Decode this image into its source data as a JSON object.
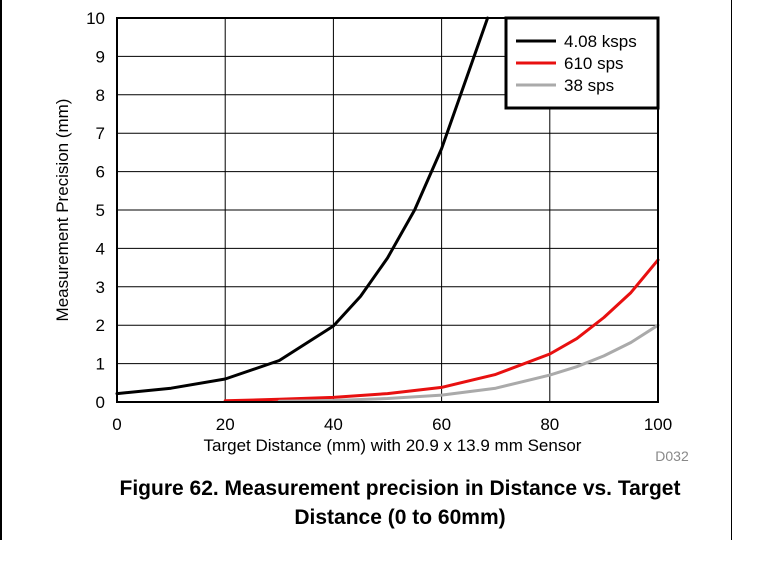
{
  "chart_data": {
    "type": "line",
    "xlabel": "Target Distance (mm) with 20.9 x 13.9 mm Sensor",
    "ylabel": "Measurement Precision (mm)",
    "xlim": [
      0,
      100
    ],
    "ylim": [
      0,
      10
    ],
    "xticks": [
      0,
      20,
      40,
      60,
      80,
      100
    ],
    "yticks": [
      0,
      1,
      2,
      3,
      4,
      5,
      6,
      7,
      8,
      9,
      10
    ],
    "grid": true,
    "legend_position": "top-right",
    "watermark": "D032",
    "series": [
      {
        "name": "4.08 ksps",
        "color": "#000000",
        "x": [
          0,
          10,
          20,
          30,
          40,
          45,
          50,
          55,
          60,
          65,
          68.5
        ],
        "y": [
          0.22,
          0.36,
          0.6,
          1.08,
          1.98,
          2.75,
          3.75,
          5.0,
          6.6,
          8.6,
          10.0
        ]
      },
      {
        "name": "610 sps",
        "color": "#e81010",
        "x": [
          20,
          30,
          40,
          50,
          60,
          70,
          80,
          85,
          90,
          95,
          100
        ],
        "y": [
          0.03,
          0.07,
          0.12,
          0.22,
          0.38,
          0.72,
          1.25,
          1.65,
          2.2,
          2.85,
          3.7
        ]
      },
      {
        "name": "38 sps",
        "color": "#aaaaaa",
        "x": [
          30,
          40,
          50,
          60,
          70,
          80,
          85,
          90,
          95,
          100
        ],
        "y": [
          0.02,
          0.04,
          0.09,
          0.18,
          0.36,
          0.7,
          0.92,
          1.2,
          1.55,
          2.0
        ]
      }
    ]
  },
  "figure_caption": {
    "line1": "Figure 62. Measurement precision in Distance vs. Target",
    "line2": "Distance (0 to 60mm)"
  }
}
